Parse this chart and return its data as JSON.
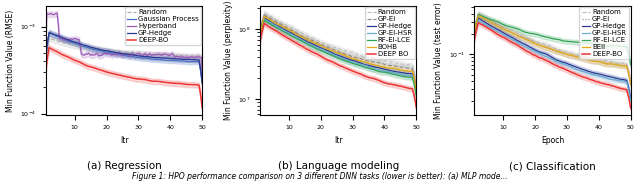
{
  "figure_caption": "Figure 1: HPO performance comparison on 3 different DNN tasks (lower is better): (a) MLP mode...",
  "subplot_captions": [
    "(a) Regression",
    "(b) Language modeling",
    "(c) Classification"
  ],
  "subplot_xlabels": [
    "Itr",
    "Itr",
    "Epoch"
  ],
  "subplot_ylabels": [
    "Min Function Value (RMSE)",
    "Min Function Value (perplexity)",
    "Min Function Value (test error)"
  ],
  "bg_color": "#FFFFFF",
  "legend_fontsize": 5.0,
  "tick_fontsize": 4.5,
  "label_fontsize": 5.5,
  "caption_fontsize": 7.5
}
